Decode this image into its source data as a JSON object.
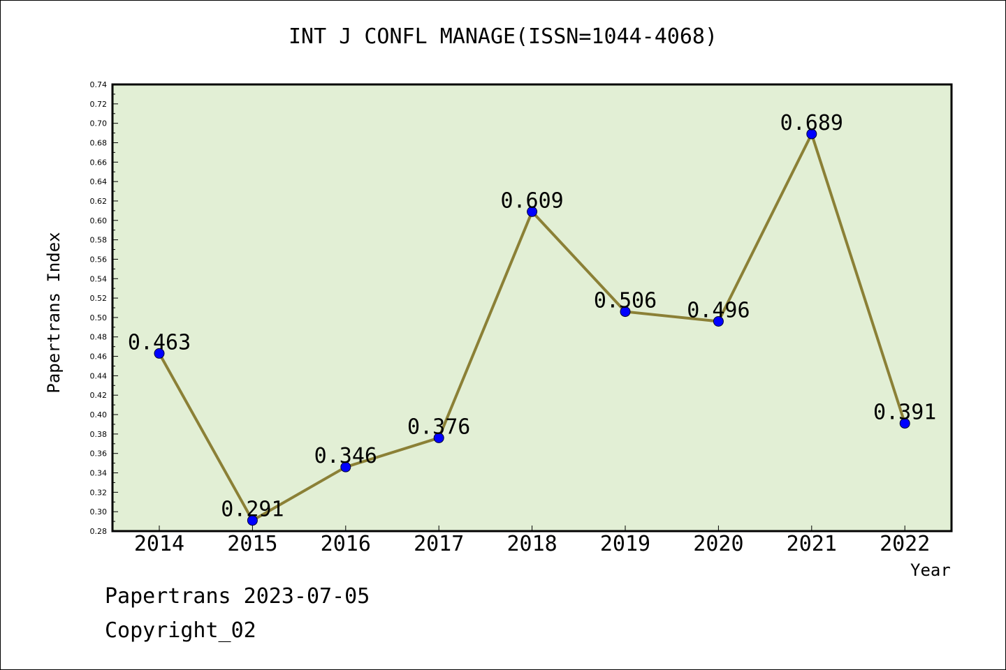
{
  "chart_data": {
    "type": "line",
    "title": "INT J CONFL MANAGE(ISSN=1044-4068)",
    "xlabel": "Year",
    "ylabel": "Papertrans Index",
    "categories": [
      "2014",
      "2015",
      "2016",
      "2017",
      "2018",
      "2019",
      "2020",
      "2021",
      "2022"
    ],
    "values": [
      0.463,
      0.291,
      0.346,
      0.376,
      0.609,
      0.506,
      0.496,
      0.689,
      0.391
    ],
    "data_labels": [
      "0.463",
      "0.291",
      "0.346",
      "0.376",
      "0.609",
      "0.506",
      "0.496",
      "0.689",
      "0.391"
    ],
    "ylim": [
      0.28,
      0.74
    ],
    "yticks": [
      "0.28",
      "0.30",
      "0.32",
      "0.34",
      "0.36",
      "0.38",
      "0.40",
      "0.42",
      "0.44",
      "0.46",
      "0.48",
      "0.50",
      "0.52",
      "0.54",
      "0.56",
      "0.58",
      "0.60",
      "0.62",
      "0.64",
      "0.66",
      "0.68",
      "0.70",
      "0.72",
      "0.74"
    ],
    "grid": false,
    "colors": {
      "plot_background": "#e2efd5",
      "line": "#8b8036",
      "marker": "#0000ff"
    }
  },
  "footer": {
    "date_line": "Papertrans 2023-07-05",
    "copyright": "Copyright_02"
  }
}
